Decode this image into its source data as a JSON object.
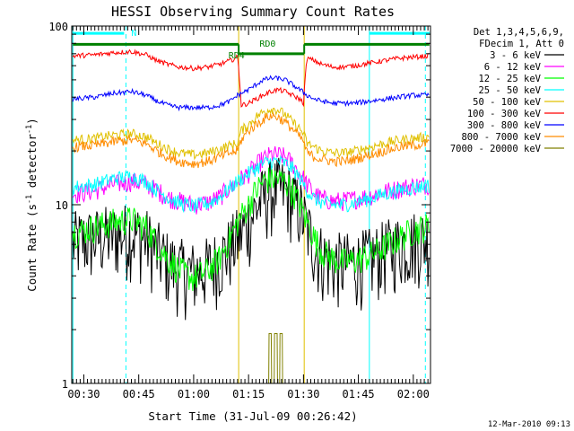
{
  "chart_data": {
    "type": "line",
    "title": "HESSI Observing Summary Count Rates",
    "xlabel": "Start Time (31-Jul-09 00:26:42)",
    "ylabel": "Count Rate (s^-1 detector^-1)",
    "ylabel_parts": {
      "main": "Count Rate (s",
      "exp": "-1",
      "mid": " detector",
      "exp2": "-1",
      "end": ")"
    },
    "y_scale": "log",
    "ylim": [
      1,
      100
    ],
    "y_tick_labels": [
      "1",
      "10",
      "100"
    ],
    "xlim_minutes": [
      26.7,
      124.7
    ],
    "x_tick_labels": [
      "00:30",
      "00:45",
      "01:00",
      "01:15",
      "01:30",
      "01:45",
      "02:00"
    ],
    "x_tick_minutes": [
      30,
      45,
      60,
      75,
      90,
      105,
      120
    ],
    "legend_header": [
      "Det 1,3,4,5,6,9,",
      "FDecim 1, Att 0"
    ],
    "legend_placement": "right",
    "timestamp": "12-Mar-2010 09:13",
    "series": [
      {
        "name": "3 - 6 keV",
        "color": "#000000",
        "t": [
          27,
          33,
          38,
          43,
          47,
          50,
          53,
          56,
          60,
          64,
          67,
          70,
          72,
          75,
          77,
          79,
          81,
          83,
          85,
          87,
          89,
          91,
          93,
          95,
          98,
          101,
          104,
          108,
          112,
          116,
          120,
          124
        ],
        "values": [
          6.2,
          6.5,
          6.8,
          7.0,
          6.5,
          5.5,
          4.8,
          4.4,
          4.2,
          4.5,
          5.0,
          5.8,
          6.5,
          8.0,
          9.5,
          11.0,
          12.0,
          12.5,
          12.0,
          11.0,
          9.5,
          7.5,
          6.0,
          5.2,
          4.8,
          4.7,
          4.8,
          5.0,
          5.5,
          6.0,
          6.3,
          6.5
        ],
        "noise": 0.3
      },
      {
        "name": "6 - 12 keV",
        "color": "#ff00ff",
        "t": [
          27,
          33,
          38,
          43,
          47,
          50,
          53,
          56,
          60,
          64,
          67,
          70,
          72,
          75,
          77,
          79,
          81,
          83,
          85,
          87,
          89,
          91,
          93,
          95,
          98,
          101,
          104,
          108,
          112,
          116,
          120,
          124
        ],
        "values": [
          11.5,
          12.0,
          13.0,
          13.5,
          13.0,
          12.0,
          11.0,
          10.5,
          10.0,
          10.3,
          11.0,
          12.5,
          13.5,
          15.0,
          16.5,
          18.0,
          19.0,
          19.0,
          18.5,
          17.0,
          15.0,
          13.0,
          11.5,
          10.8,
          10.5,
          10.5,
          10.8,
          11.2,
          11.8,
          12.3,
          12.8,
          13.0
        ],
        "noise": 0.08
      },
      {
        "name": "12 - 25 keV",
        "color": "#00ff00",
        "t": [
          27,
          33,
          38,
          43,
          47,
          50,
          53,
          56,
          60,
          64,
          67,
          70,
          72,
          75,
          77,
          79,
          81,
          83,
          85,
          87,
          89,
          91,
          93,
          95,
          98,
          101,
          104,
          108,
          112,
          116,
          120,
          124
        ],
        "values": [
          7.0,
          7.5,
          8.0,
          8.3,
          7.5,
          6.0,
          5.0,
          4.3,
          3.9,
          4.3,
          5.0,
          6.5,
          8.0,
          10.0,
          12.0,
          13.5,
          14.0,
          14.0,
          13.5,
          12.0,
          10.0,
          8.0,
          6.5,
          5.5,
          5.0,
          4.8,
          4.9,
          5.2,
          5.8,
          6.5,
          7.2,
          7.6
        ],
        "noise": 0.12
      },
      {
        "name": "25 - 50 keV",
        "color": "#00ffff",
        "t": [
          27,
          33,
          38,
          43,
          47,
          50,
          53,
          56,
          60,
          64,
          67,
          70,
          72,
          75,
          77,
          79,
          81,
          83,
          85,
          87,
          89,
          91,
          93,
          95,
          98,
          101,
          104,
          108,
          112,
          116,
          120,
          124
        ],
        "values": [
          12.5,
          13.0,
          14.0,
          14.5,
          13.5,
          12.0,
          11.0,
          10.2,
          9.8,
          10.2,
          11.0,
          12.5,
          13.5,
          15.0,
          16.0,
          17.0,
          17.5,
          17.5,
          17.0,
          16.0,
          14.0,
          12.0,
          10.8,
          10.3,
          10.0,
          10.0,
          10.3,
          10.8,
          11.5,
          12.0,
          12.5,
          12.8
        ],
        "noise": 0.06
      },
      {
        "name": "50 - 100 keV",
        "color": "#e0c000",
        "t": [
          27,
          33,
          38,
          43,
          47,
          50,
          53,
          56,
          60,
          64,
          67,
          70,
          72,
          73,
          75,
          77,
          79,
          81,
          83,
          85,
          87,
          89,
          90,
          91,
          93,
          95,
          98,
          101,
          104,
          108,
          112,
          116,
          120,
          124
        ],
        "values": [
          23.0,
          23.5,
          24.5,
          25.0,
          24.0,
          22.0,
          20.5,
          19.5,
          19.0,
          19.5,
          20.5,
          21.5,
          22.0,
          26.0,
          28.0,
          31.0,
          33.0,
          34.5,
          34.0,
          32.0,
          29.0,
          26.5,
          25.0,
          22.0,
          21.0,
          20.0,
          19.5,
          19.5,
          20.0,
          21.0,
          22.0,
          23.0,
          23.5,
          24.0
        ],
        "noise": 0.04
      },
      {
        "name": "100 - 300 keV",
        "color": "#ff0000",
        "t": [
          27,
          33,
          38,
          43,
          47,
          50,
          53,
          56,
          60,
          64,
          67,
          70,
          72,
          73,
          75,
          77,
          79,
          81,
          83,
          85,
          87,
          89,
          90,
          91,
          93,
          95,
          98,
          101,
          104,
          108,
          112,
          116,
          120,
          124
        ],
        "values": [
          68,
          69,
          71,
          72,
          69,
          64,
          61,
          59,
          58,
          59,
          61,
          64,
          67,
          36,
          37,
          39,
          41,
          43,
          44,
          43,
          41,
          39,
          37,
          66,
          64,
          61,
          59,
          59,
          60,
          62,
          64,
          66,
          67,
          68
        ],
        "noise": 0.02
      },
      {
        "name": "300 - 800 keV",
        "color": "#0000ff",
        "t": [
          27,
          33,
          38,
          43,
          47,
          50,
          53,
          56,
          60,
          64,
          67,
          70,
          72,
          75,
          77,
          79,
          81,
          83,
          85,
          87,
          89,
          91,
          93,
          95,
          98,
          101,
          104,
          108,
          112,
          116,
          120,
          124
        ],
        "values": [
          39,
          40,
          42,
          43,
          41,
          38,
          36,
          35,
          35,
          35,
          36,
          38,
          41,
          44,
          47,
          50,
          51,
          51,
          50,
          47,
          44,
          41,
          39,
          38,
          37,
          37,
          37,
          38,
          39,
          40,
          41,
          41
        ],
        "noise": 0.02
      },
      {
        "name": "800 - 7000 keV",
        "color": "#ff8c00",
        "t": [
          27,
          33,
          38,
          43,
          47,
          50,
          53,
          56,
          60,
          64,
          67,
          70,
          72,
          73,
          75,
          77,
          79,
          81,
          83,
          85,
          87,
          89,
          90,
          91,
          93,
          95,
          98,
          101,
          104,
          108,
          112,
          116,
          120,
          124
        ],
        "values": [
          21.0,
          21.5,
          22.5,
          23.0,
          22.0,
          20.0,
          18.5,
          17.5,
          17.0,
          17.5,
          18.5,
          19.5,
          20.0,
          23.0,
          26.0,
          28.0,
          30.0,
          31.5,
          31.0,
          29.0,
          26.5,
          24.0,
          22.5,
          19.5,
          18.5,
          18.0,
          17.5,
          17.5,
          18.0,
          19.0,
          20.0,
          21.0,
          21.5,
          22.0
        ],
        "noise": 0.04
      },
      {
        "name": "7000 - 20000 keV",
        "color": "#808000",
        "t": [
          27,
          80.5,
          80.6,
          81.2,
          81.3,
          82.0,
          82.1,
          82.8,
          82.9,
          83.5,
          83.6,
          84.2,
          84.3,
          85.0,
          85.1,
          124
        ],
        "values": [
          1,
          1,
          1.9,
          1.9,
          1,
          1,
          1.9,
          1.9,
          1,
          1,
          1.9,
          1.9,
          1,
          1,
          1,
          1
        ],
        "noise": 0
      }
    ],
    "annotations": {
      "attenuator_bars": [
        {
          "label": "N",
          "color": "#00ffff",
          "t_start": 27,
          "t_end": 41,
          "y": 91
        },
        {
          "label": "",
          "color": "#00ffff",
          "t_start": 108,
          "t_end": 124.5,
          "y": 91
        }
      ],
      "state_bar": {
        "color": "#008000",
        "y_high": 79,
        "y_low": 70,
        "low_start": 72.3,
        "low_end": 90.2,
        "labels": [
          {
            "text": "RD0",
            "t": 78,
            "y": 76.5
          },
          {
            "text": "RD4",
            "t": 69.5,
            "y": 66
          }
        ]
      },
      "vlines_solid": [
        {
          "t": 27,
          "color": "#00ffff"
        },
        {
          "t": 108,
          "color": "#00ffff"
        },
        {
          "t": 72.3,
          "color": "#e0c000"
        },
        {
          "t": 90.2,
          "color": "#e0c000"
        }
      ],
      "vlines_dashed": [
        {
          "t": 41.5,
          "color": "#00ffff"
        },
        {
          "t": 123.3,
          "color": "#00ffff"
        }
      ]
    }
  }
}
